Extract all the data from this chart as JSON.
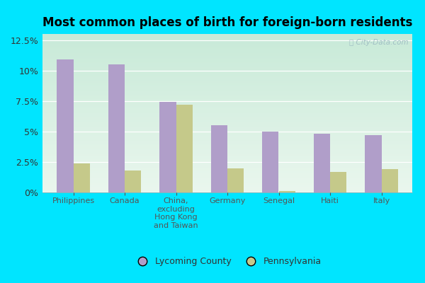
{
  "title": "Most common places of birth for foreign-born residents",
  "categories": [
    "Philippines",
    "Canada",
    "China,\nexcluding\nHong Kong\nand Taiwan",
    "Germany",
    "Senegal",
    "Haiti",
    "Italy"
  ],
  "lycoming": [
    10.9,
    10.5,
    7.4,
    5.5,
    5.0,
    4.8,
    4.7
  ],
  "pennsylvania": [
    2.4,
    1.8,
    7.2,
    2.0,
    0.1,
    1.7,
    1.9
  ],
  "lycoming_color": "#b09ec9",
  "pennsylvania_color": "#c5c98a",
  "ylim": [
    0,
    13.0
  ],
  "yticks": [
    0,
    2.5,
    5.0,
    7.5,
    10.0,
    12.5
  ],
  "ytick_labels": [
    "0%",
    "2.5%",
    "5%",
    "7.5%",
    "10%",
    "12.5%"
  ],
  "bg_color_outer": "#00e5ff",
  "bg_gradient_top": "#c8ead8",
  "bg_gradient_bottom": "#eaf7ee",
  "bg_right_fade": "#d0eee8",
  "watermark": "City-Data.com",
  "legend_lycoming": "Lycoming County",
  "legend_pennsylvania": "Pennsylvania",
  "bar_width": 0.32
}
